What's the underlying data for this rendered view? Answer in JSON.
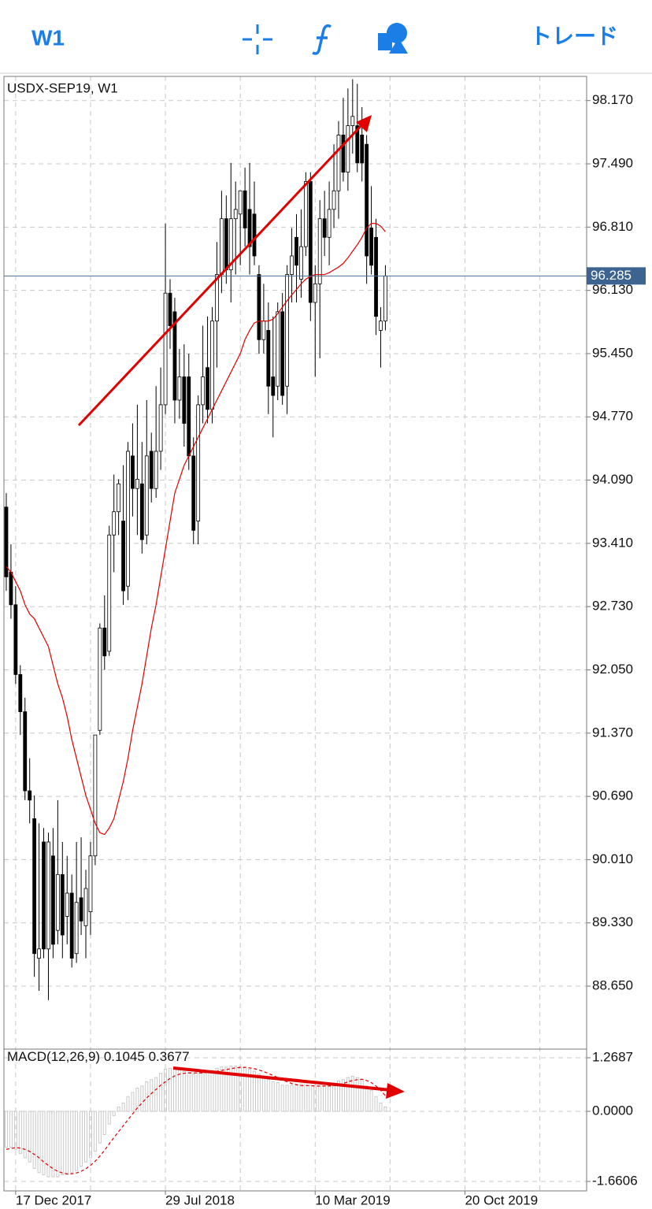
{
  "toolbar": {
    "timeframe": "W1",
    "trade": "トレード"
  },
  "chart_data": {
    "type": "candlestick",
    "title": "USDX-SEP19, W1",
    "xlim": [
      -0.5,
      124
    ],
    "xticks": [
      {
        "value": 2,
        "label": "17 Dec 2017"
      },
      {
        "value": 34,
        "label": "29 Jul 2018"
      },
      {
        "value": 66,
        "label": "10 Mar 2019"
      },
      {
        "value": 98,
        "label": "20 Oct 2019"
      }
    ],
    "xgrid": [
      2,
      18,
      34,
      50,
      66,
      82,
      98,
      114
    ],
    "ylim": [
      87.99,
      98.43
    ],
    "yticks": [
      {
        "value": 98.17,
        "label": "98.170"
      },
      {
        "value": 97.49,
        "label": "97.490"
      },
      {
        "value": 96.81,
        "label": "96.810"
      },
      {
        "value": 96.13,
        "label": "96.130"
      },
      {
        "value": 95.45,
        "label": "95.450"
      },
      {
        "value": 94.77,
        "label": "94.770"
      },
      {
        "value": 94.09,
        "label": "94.090"
      },
      {
        "value": 93.41,
        "label": "93.410"
      },
      {
        "value": 92.73,
        "label": "92.730"
      },
      {
        "value": 92.05,
        "label": "92.050"
      },
      {
        "value": 91.37,
        "label": "91.370"
      },
      {
        "value": 90.69,
        "label": "90.690"
      },
      {
        "value": 90.01,
        "label": "90.010"
      },
      {
        "value": 89.33,
        "label": "89.330"
      },
      {
        "value": 88.65,
        "label": "88.650"
      }
    ],
    "grid": true,
    "current_price": 96.285,
    "candles": {
      "up_color": "#ffffff",
      "down_color": "#000000",
      "open": [
        93.8,
        93.1,
        92.75,
        92.0,
        91.6,
        90.75,
        90.45,
        88.95,
        90.2,
        89.05,
        90.05,
        89.25,
        89.85,
        89.4,
        89.65,
        89.0,
        89.6,
        89.3,
        89.45,
        90.05,
        91.4,
        92.5,
        92.25,
        93.5,
        93.75,
        93.65,
        92.95,
        94.35,
        94.0,
        94.05,
        93.5,
        94.4,
        94.0,
        94.4,
        94.9,
        96.1,
        95.9,
        94.95,
        95.2,
        95.2,
        94.35,
        93.65,
        94.9,
        95.3,
        94.85,
        95.8,
        96.3,
        96.9,
        96.35,
        96.9,
        96.95,
        97.2,
        97.0,
        96.95,
        96.3,
        95.6,
        95.7,
        95.2,
        95.1,
        95.9,
        95.1,
        96.3,
        96.7,
        96.25,
        96.6,
        97.3,
        96.0,
        96.2,
        96.9,
        96.7,
        97.0,
        97.2,
        97.8,
        97.4,
        97.9,
        97.9,
        97.8,
        97.7,
        96.8,
        96.7,
        95.7,
        95.8
      ],
      "high": [
        93.95,
        93.4,
        92.95,
        92.1,
        91.75,
        91.1,
        90.7,
        90.4,
        90.35,
        90.3,
        90.35,
        90.65,
        90.2,
        90.05,
        89.85,
        90.2,
        90.25,
        89.9,
        90.2,
        90.5,
        92.55,
        92.85,
        93.6,
        94.15,
        94.1,
        94.25,
        94.5,
        94.7,
        94.9,
        94.5,
        94.95,
        94.6,
        95.1,
        95.3,
        96.85,
        96.25,
        96.05,
        95.5,
        95.55,
        95.45,
        94.55,
        95.0,
        95.75,
        95.85,
        95.95,
        96.65,
        97.2,
        97.15,
        97.5,
        97.3,
        97.15,
        97.45,
        97.5,
        97.3,
        96.4,
        96.2,
        96.0,
        95.85,
        96.0,
        96.1,
        96.4,
        96.8,
        96.95,
        97.0,
        97.4,
        97.4,
        96.4,
        97.1,
        97.2,
        97.3,
        97.7,
        97.95,
        98.2,
        98.3,
        98.4,
        98.35,
        98.1,
        97.8,
        97.25,
        96.9,
        95.95,
        96.4
      ],
      "low": [
        92.9,
        92.6,
        91.9,
        91.35,
        90.65,
        90.4,
        88.75,
        88.6,
        88.95,
        88.5,
        88.95,
        89.1,
        88.95,
        89.1,
        88.85,
        88.9,
        89.2,
        88.95,
        89.2,
        89.95,
        91.35,
        92.05,
        92.2,
        93.1,
        93.5,
        92.75,
        92.8,
        93.7,
        93.5,
        93.3,
        93.4,
        93.85,
        93.9,
        94.2,
        94.8,
        95.5,
        94.7,
        94.75,
        94.45,
        94.2,
        93.4,
        93.4,
        94.7,
        94.7,
        94.7,
        95.3,
        96.1,
        96.2,
        96.0,
        96.3,
        96.4,
        96.6,
        96.3,
        96.4,
        95.45,
        95.45,
        94.8,
        94.55,
        94.95,
        94.9,
        94.8,
        96.0,
        96.0,
        96.05,
        96.5,
        95.8,
        95.2,
        95.4,
        96.5,
        96.4,
        96.8,
        96.9,
        97.3,
        97.2,
        97.6,
        97.4,
        97.3,
        96.2,
        96.3,
        95.65,
        95.3,
        95.7
      ],
      "close": [
        93.05,
        92.75,
        92.0,
        91.6,
        90.75,
        90.65,
        89.0,
        89.05,
        89.05,
        90.2,
        89.1,
        89.85,
        89.2,
        89.65,
        88.95,
        89.55,
        89.35,
        89.7,
        90.05,
        91.35,
        92.5,
        92.2,
        93.5,
        93.75,
        94.05,
        92.9,
        94.4,
        94.0,
        94.1,
        93.45,
        94.35,
        94.0,
        94.4,
        94.9,
        96.1,
        95.75,
        94.95,
        95.2,
        94.7,
        94.35,
        93.55,
        94.9,
        95.2,
        94.85,
        95.8,
        96.3,
        96.9,
        96.35,
        96.9,
        97.0,
        97.2,
        96.8,
        96.6,
        96.5,
        95.6,
        95.8,
        95.1,
        95.0,
        95.9,
        95.0,
        96.3,
        96.5,
        96.4,
        96.6,
        97.3,
        96.0,
        96.2,
        96.9,
        96.7,
        97.0,
        97.2,
        97.8,
        97.4,
        97.9,
        98.0,
        97.5,
        97.5,
        96.5,
        96.4,
        95.85,
        95.8,
        96.285
      ]
    },
    "ma": {
      "color": "#e00000",
      "values": [
        93.16,
        93.1,
        93.0,
        92.9,
        92.75,
        92.65,
        92.6,
        92.5,
        92.4,
        92.3,
        92.1,
        91.9,
        91.75,
        91.55,
        91.3,
        91.1,
        90.9,
        90.7,
        90.55,
        90.4,
        90.3,
        90.28,
        90.35,
        90.45,
        90.65,
        90.85,
        91.1,
        91.4,
        91.65,
        91.9,
        92.2,
        92.5,
        92.75,
        93.05,
        93.35,
        93.65,
        93.95,
        94.1,
        94.25,
        94.35,
        94.45,
        94.55,
        94.65,
        94.75,
        94.85,
        94.95,
        95.05,
        95.15,
        95.25,
        95.35,
        95.45,
        95.6,
        95.7,
        95.78,
        95.8,
        95.8,
        95.8,
        95.82,
        95.88,
        95.95,
        96.02,
        96.08,
        96.14,
        96.2,
        96.25,
        96.28,
        96.3,
        96.3,
        96.3,
        96.32,
        96.35,
        96.38,
        96.42,
        96.48,
        96.55,
        96.62,
        96.7,
        96.8,
        96.85,
        96.85,
        96.82,
        96.76
      ]
    },
    "macd": {
      "title": "MACD(12,26,9)",
      "ylim": [
        -1.884,
        1.474
      ],
      "yticks": [
        {
          "value": 1.2687,
          "label": "1.2687"
        },
        {
          "value": 0,
          "label": "0.0000"
        },
        {
          "value": -1.6606,
          "label": "-1.6606"
        }
      ],
      "color": "#c8c8c8",
      "values": [
        -0.85,
        -0.85,
        -0.9,
        -1.0,
        -1.1,
        -1.2,
        -1.35,
        -1.45,
        -1.5,
        -1.55,
        -1.55,
        -1.55,
        -1.5,
        -1.5,
        -1.45,
        -1.4,
        -1.3,
        -1.2,
        -1.1,
        -0.95,
        -0.75,
        -0.55,
        -0.3,
        -0.1,
        0.1,
        0.2,
        0.35,
        0.45,
        0.55,
        0.6,
        0.7,
        0.75,
        0.8,
        0.9,
        1.0,
        1.02,
        1.0,
        0.98,
        0.95,
        0.92,
        0.88,
        0.9,
        0.92,
        0.93,
        0.97,
        1.02,
        1.05,
        1.05,
        1.07,
        1.07,
        1.06,
        1.05,
        1.0,
        0.95,
        0.88,
        0.82,
        0.75,
        0.7,
        0.68,
        0.62,
        0.62,
        0.63,
        0.64,
        0.65,
        0.7,
        0.62,
        0.58,
        0.6,
        0.6,
        0.62,
        0.65,
        0.72,
        0.75,
        0.8,
        0.83,
        0.8,
        0.75,
        0.6,
        0.5,
        0.35,
        0.2,
        0.1045
      ],
      "signal": {
        "color": "#e00000",
        "values": [
          -0.9,
          -0.88,
          -0.86,
          -0.87,
          -0.9,
          -0.95,
          -1.02,
          -1.1,
          -1.2,
          -1.28,
          -1.36,
          -1.42,
          -1.46,
          -1.48,
          -1.48,
          -1.46,
          -1.42,
          -1.36,
          -1.28,
          -1.18,
          -1.06,
          -0.92,
          -0.77,
          -0.62,
          -0.48,
          -0.34,
          -0.2,
          -0.06,
          0.08,
          0.2,
          0.32,
          0.42,
          0.52,
          0.62,
          0.7,
          0.78,
          0.84,
          0.88,
          0.9,
          0.91,
          0.91,
          0.91,
          0.91,
          0.92,
          0.93,
          0.95,
          0.97,
          0.99,
          1.01,
          1.03,
          1.04,
          1.04,
          1.03,
          1.01,
          0.98,
          0.94,
          0.9,
          0.85,
          0.8,
          0.75,
          0.7,
          0.66,
          0.63,
          0.61,
          0.61,
          0.61,
          0.6,
          0.6,
          0.6,
          0.6,
          0.61,
          0.63,
          0.66,
          0.7,
          0.73,
          0.75,
          0.76,
          0.73,
          0.68,
          0.6,
          0.5,
          0.3677
        ]
      }
    }
  }
}
